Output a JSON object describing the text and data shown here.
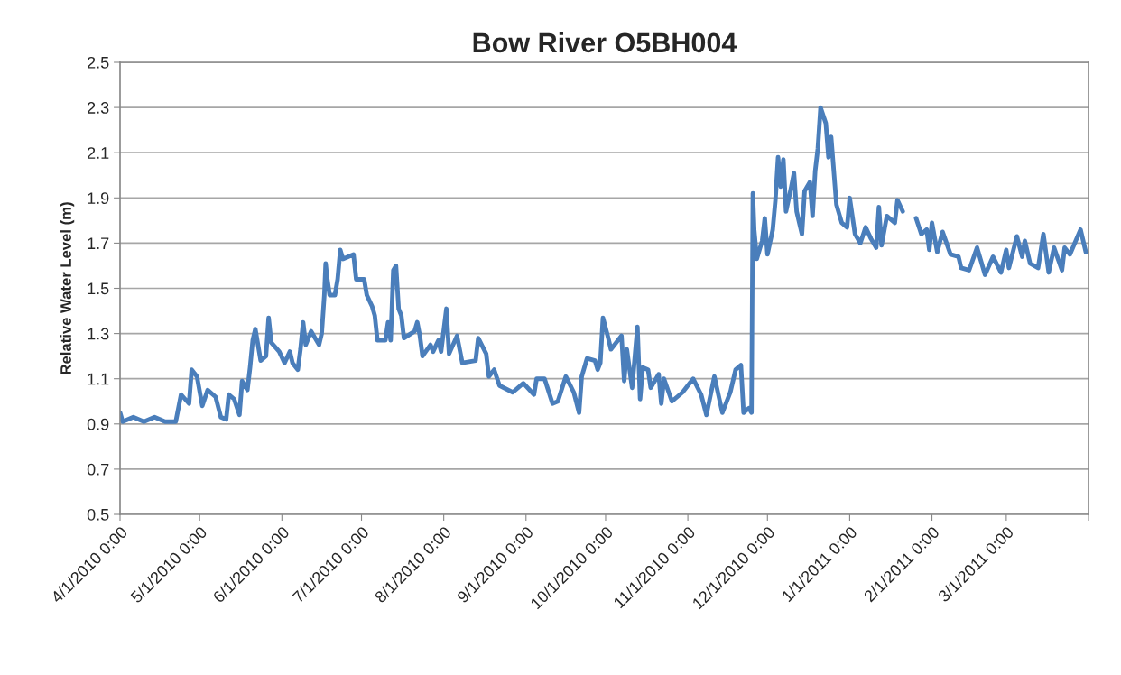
{
  "chart_data": {
    "type": "line",
    "title": "Bow River O5BH004",
    "ylabel": "Relative Water Level (m)",
    "x": [
      "2010-04-01",
      "2010-04-02",
      "2010-04-06",
      "2010-04-10",
      "2010-04-14",
      "2010-04-18",
      "2010-04-22",
      "2010-04-24",
      "2010-04-27",
      "2010-04-28",
      "2010-04-30",
      "2010-05-02",
      "2010-05-04",
      "2010-05-07",
      "2010-05-09",
      "2010-05-11",
      "2010-05-12",
      "2010-05-14",
      "2010-05-16",
      "2010-05-17",
      "2010-05-19",
      "2010-05-20",
      "2010-05-21",
      "2010-05-22",
      "2010-05-23",
      "2010-05-24",
      "2010-05-26",
      "2010-05-27",
      "2010-05-28",
      "2010-05-31",
      "2010-06-02",
      "2010-06-04",
      "2010-06-05",
      "2010-06-07",
      "2010-06-08",
      "2010-06-09",
      "2010-06-10",
      "2010-06-12",
      "2010-06-15",
      "2010-06-16",
      "2010-06-17",
      "2010-06-17T12:00",
      "2010-06-18",
      "2010-06-19",
      "2010-06-21",
      "2010-06-22",
      "2010-06-23",
      "2010-06-24",
      "2010-06-28",
      "2010-06-29",
      "2010-07-02",
      "2010-07-03",
      "2010-07-05",
      "2010-07-06",
      "2010-07-07",
      "2010-07-10",
      "2010-07-11",
      "2010-07-12",
      "2010-07-13",
      "2010-07-14",
      "2010-07-15",
      "2010-07-16",
      "2010-07-17",
      "2010-07-21",
      "2010-07-22",
      "2010-07-23",
      "2010-07-24",
      "2010-07-27",
      "2010-07-28",
      "2010-07-30",
      "2010-07-31",
      "2010-08-02",
      "2010-08-03",
      "2010-08-06",
      "2010-08-08",
      "2010-08-13",
      "2010-08-14",
      "2010-08-17",
      "2010-08-18",
      "2010-08-20",
      "2010-08-22",
      "2010-08-27",
      "2010-08-31",
      "2010-09-04",
      "2010-09-05",
      "2010-09-08",
      "2010-09-11",
      "2010-09-13",
      "2010-09-16",
      "2010-09-19",
      "2010-09-21",
      "2010-09-22",
      "2010-09-24",
      "2010-09-27",
      "2010-09-28",
      "2010-09-29",
      "2010-09-30",
      "2010-10-02",
      "2010-10-03",
      "2010-10-07",
      "2010-10-08",
      "2010-10-09",
      "2010-10-11",
      "2010-10-13",
      "2010-10-14",
      "2010-10-15",
      "2010-10-17",
      "2010-10-18",
      "2010-10-21",
      "2010-10-22",
      "2010-10-23",
      "2010-10-26",
      "2010-10-30",
      "2010-11-03",
      "2010-11-06",
      "2010-11-08",
      "2010-11-11",
      "2010-11-14",
      "2010-11-17",
      "2010-11-19",
      "2010-11-21",
      "2010-11-22",
      "2010-11-24",
      "2010-11-25",
      "2010-11-25T12:00",
      "2010-11-26",
      "2010-11-27",
      "2010-11-29",
      "2010-11-30",
      "2010-12-01",
      "2010-12-03",
      "2010-12-04",
      "2010-12-05",
      "2010-12-06",
      "2010-12-07",
      "2010-12-08",
      "2010-12-10",
      "2010-12-11",
      "2010-12-12",
      "2010-12-14",
      "2010-12-15",
      "2010-12-17",
      "2010-12-18",
      "2010-12-19",
      "2010-12-20",
      "2010-12-21",
      "2010-12-23",
      "2010-12-24",
      "2010-12-25",
      "2010-12-26",
      "2010-12-27",
      "2010-12-29",
      "2010-12-31",
      "2011-01-01",
      "2011-01-03",
      "2011-01-05",
      "2011-01-07",
      "2011-01-09",
      "2011-01-11",
      "2011-01-12",
      "2011-01-13",
      "2011-01-15",
      "2011-01-18",
      "2011-01-19",
      "2011-01-21",
      "2011-01-24",
      "2011-01-26",
      "2011-01-28",
      "2011-01-30",
      "2011-01-31",
      "2011-02-01",
      "2011-02-03",
      "2011-02-05",
      "2011-02-08",
      "2011-02-11",
      "2011-02-12",
      "2011-02-15",
      "2011-02-18",
      "2011-02-21",
      "2011-02-24",
      "2011-02-27",
      "2011-03-01",
      "2011-03-02",
      "2011-03-05",
      "2011-03-07",
      "2011-03-08",
      "2011-03-10",
      "2011-03-13",
      "2011-03-15",
      "2011-03-17",
      "2011-03-19",
      "2011-03-22",
      "2011-03-23",
      "2011-03-25",
      "2011-03-29",
      "2011-03-31"
    ],
    "series": [
      {
        "color": "#4a7ebb",
        "values": [
          0.95,
          0.91,
          0.93,
          0.91,
          0.93,
          0.91,
          0.91,
          1.03,
          0.99,
          1.14,
          1.11,
          0.98,
          1.05,
          1.02,
          0.93,
          0.92,
          1.03,
          1.01,
          0.94,
          1.09,
          1.05,
          1.15,
          1.27,
          1.32,
          1.25,
          1.18,
          1.2,
          1.37,
          1.26,
          1.22,
          1.17,
          1.22,
          1.17,
          1.14,
          1.23,
          1.35,
          1.25,
          1.31,
          1.25,
          1.3,
          1.47,
          1.61,
          1.55,
          1.47,
          1.47,
          1.54,
          1.67,
          1.63,
          1.65,
          1.54,
          1.54,
          1.47,
          1.42,
          1.38,
          1.27,
          1.27,
          1.35,
          1.27,
          1.58,
          1.6,
          1.41,
          1.38,
          1.28,
          1.31,
          1.35,
          1.29,
          1.2,
          1.25,
          1.22,
          1.27,
          1.22,
          1.41,
          1.21,
          1.29,
          1.17,
          1.18,
          1.28,
          1.21,
          1.11,
          1.14,
          1.07,
          1.04,
          1.08,
          1.03,
          1.1,
          1.1,
          0.99,
          1.0,
          1.11,
          1.04,
          0.95,
          1.11,
          1.19,
          1.18,
          1.14,
          1.17,
          1.37,
          1.28,
          1.23,
          1.29,
          1.09,
          1.23,
          1.06,
          1.33,
          1.01,
          1.15,
          1.14,
          1.06,
          1.12,
          0.99,
          1.1,
          1.0,
          1.04,
          1.1,
          1.03,
          0.94,
          1.11,
          0.95,
          1.04,
          1.14,
          1.16,
          0.95,
          0.97,
          0.95,
          1.92,
          1.76,
          1.63,
          1.71,
          1.81,
          1.65,
          1.76,
          1.89,
          2.08,
          1.95,
          2.07,
          1.84,
          1.95,
          2.01,
          1.84,
          1.74,
          1.93,
          1.97,
          1.82,
          2.02,
          2.12,
          2.3,
          2.23,
          2.08,
          2.17,
          2.02,
          1.87,
          1.79,
          1.77,
          1.9,
          1.74,
          1.7,
          1.77,
          1.72,
          1.68,
          1.86,
          1.69,
          1.82,
          1.79,
          1.89,
          1.84,
          null,
          1.81,
          1.74,
          1.76,
          1.67,
          1.79,
          1.66,
          1.75,
          1.65,
          1.64,
          1.59,
          1.58,
          1.68,
          1.56,
          1.64,
          1.57,
          1.67,
          1.59,
          1.73,
          1.64,
          1.71,
          1.61,
          1.59,
          1.74,
          1.57,
          1.68,
          1.58,
          1.68,
          1.65,
          1.76,
          1.66
        ]
      }
    ],
    "xlim": [
      "2010-04-01",
      "2011-04-01"
    ],
    "xticks": [
      {
        "value": "2010-04-01",
        "label": "4/1/2010 0:00"
      },
      {
        "value": "2010-05-01",
        "label": "5/1/2010 0:00"
      },
      {
        "value": "2010-06-01",
        "label": "6/1/2010 0:00"
      },
      {
        "value": "2010-07-01",
        "label": "7/1/2010 0:00"
      },
      {
        "value": "2010-08-01",
        "label": "8/1/2010 0:00"
      },
      {
        "value": "2010-09-01",
        "label": "9/1/2010 0:00"
      },
      {
        "value": "2010-10-01",
        "label": "10/1/2010 0:00"
      },
      {
        "value": "2010-11-01",
        "label": "11/1/2010 0:00"
      },
      {
        "value": "2010-12-01",
        "label": "12/1/2010 0:00"
      },
      {
        "value": "2011-01-01",
        "label": "1/1/2011 0:00"
      },
      {
        "value": "2011-02-01",
        "label": "2/1/2011 0:00"
      },
      {
        "value": "2011-03-01",
        "label": "3/1/2011 0:00"
      },
      {
        "value": "2011-04-01",
        "label": null
      }
    ],
    "ylim": [
      0.5,
      2.5
    ],
    "yticks": [
      {
        "value": 0.5,
        "label": "0.5"
      },
      {
        "value": 0.7,
        "label": "0.7"
      },
      {
        "value": 0.9,
        "label": "0.9"
      },
      {
        "value": 1.1,
        "label": "1.1"
      },
      {
        "value": 1.3,
        "label": "1.3"
      },
      {
        "value": 1.5,
        "label": "1.5"
      },
      {
        "value": 1.7,
        "label": "1.7"
      },
      {
        "value": 1.9,
        "label": "1.9"
      },
      {
        "value": 2.1,
        "label": "2.1"
      },
      {
        "value": 2.3,
        "label": "2.3"
      },
      {
        "value": 2.5,
        "label": "2.5"
      }
    ],
    "grid": "y",
    "legend": false,
    "marker": "none",
    "line_style": "solid"
  }
}
